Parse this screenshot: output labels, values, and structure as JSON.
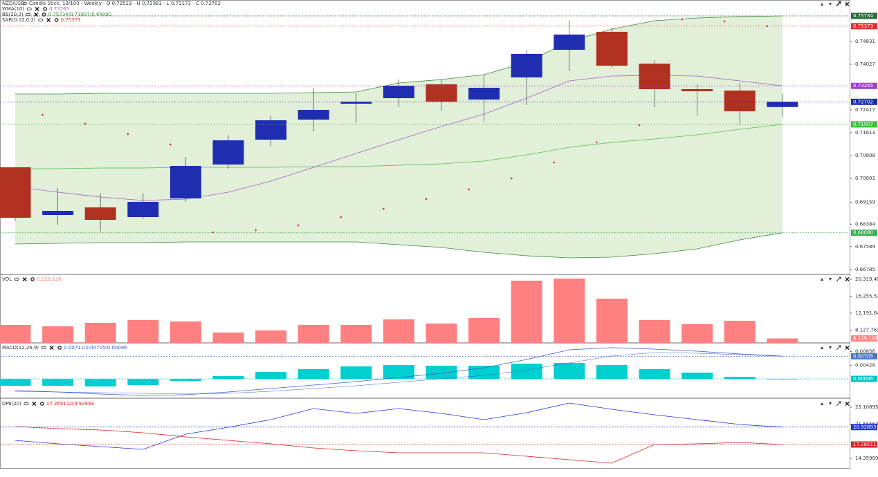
{
  "chart_data": [
    {
      "type": "candlestick",
      "symbol": "NZD/USD",
      "title": "Candle Stick, 19/100 - Weekly - O 0.72519 - H 0.72981 - L 0.72173 - C 0.72702",
      "open": [
        0.70391,
        0.68708,
        0.68976,
        0.68635,
        0.69293,
        0.70489,
        0.71367,
        0.72075,
        0.72636,
        0.72831,
        0.73319,
        0.72783,
        0.73563,
        0.74539,
        0.75174,
        0.74051,
        0.73149,
        0.731,
        0.72519
      ],
      "high": [
        0.7039,
        0.69659,
        0.69464,
        0.69464,
        0.70757,
        0.71538,
        0.72221,
        0.73197,
        0.73027,
        0.7349,
        0.7349,
        0.73685,
        0.74539,
        0.75589,
        0.7532,
        0.74173,
        0.73319,
        0.73368,
        0.72981
      ],
      "low": [
        0.685,
        0.68366,
        0.68122,
        0.68562,
        0.69171,
        0.70343,
        0.71123,
        0.7166,
        0.71953,
        0.72514,
        0.72392,
        0.72002,
        0.72587,
        0.73783,
        0.73905,
        0.72514,
        0.72221,
        0.7188,
        0.72173
      ],
      "close": [
        0.6861,
        0.68854,
        0.68537,
        0.69171,
        0.7044,
        0.71343,
        0.72051,
        0.72417,
        0.72709,
        0.73271,
        0.72709,
        0.73197,
        0.74393,
        0.75076,
        0.73978,
        0.73149,
        0.73075,
        0.72368,
        0.72702
      ],
      "up_color": "#1f2db0",
      "down_color": "#b0311f",
      "wma": {
        "name": "WMA(10)",
        "label": "0.73265",
        "color": "#a060c8",
        "values": [
          0.69708,
          0.69513,
          0.69342,
          0.6922,
          0.69269,
          0.69513,
          0.69903,
          0.70391,
          0.70879,
          0.71367,
          0.71831,
          0.7227,
          0.72831,
          0.73441,
          0.73612,
          0.73637,
          0.73612,
          0.73441,
          0.73265
        ]
      },
      "bb": {
        "name": "BB(20,2)",
        "label": "0.75734/0.71907/0.68080",
        "color": "#3a8a3a",
        "mid_color": "#4cc04c",
        "fill": "#e2efd9",
        "upper": [
          0.72978,
          0.72978,
          0.73002,
          0.73002,
          0.73002,
          0.73002,
          0.73002,
          0.73027,
          0.73051,
          0.73368,
          0.7349,
          0.73661,
          0.741,
          0.74832,
          0.75271,
          0.75564,
          0.75662,
          0.75711,
          0.75734
        ],
        "middle": [
          0.70343,
          0.70343,
          0.70367,
          0.70367,
          0.70391,
          0.70391,
          0.70391,
          0.70416,
          0.70416,
          0.70465,
          0.70514,
          0.70611,
          0.70831,
          0.71099,
          0.7127,
          0.71392,
          0.71538,
          0.71733,
          0.71907
        ],
        "lower": [
          0.67683,
          0.67708,
          0.67732,
          0.67732,
          0.67756,
          0.67756,
          0.67756,
          0.67756,
          0.67756,
          0.67659,
          0.67561,
          0.6739,
          0.67268,
          0.67195,
          0.6722,
          0.67341,
          0.67512,
          0.67829,
          0.6808
        ]
      },
      "sar": {
        "name": "SAR(0.02,0.2)",
        "label": "0.75373",
        "color": "#c0392b",
        "values": [
          null,
          0.72246,
          0.71929,
          0.71563,
          0.71197,
          0.68097,
          0.6817,
          0.68342,
          0.68634,
          0.68927,
          0.6927,
          0.69611,
          0.70001,
          0.70562,
          0.7127,
          0.7188,
          0.75613,
          0.7554,
          0.75373
        ]
      },
      "markers": [
        {
          "value": 0.75734,
          "label": "0.75734",
          "color": "#2f6b3f"
        },
        {
          "value": 0.75373,
          "label": "0.75373",
          "color": "#e0302a"
        },
        {
          "value": 0.73265,
          "label": "0.73265",
          "color": "#a040d0"
        },
        {
          "value": 0.72702,
          "label": "0.72702",
          "color": "#1a2db0"
        },
        {
          "value": 0.71907,
          "label": "0.71907",
          "color": "#3cc03c"
        },
        {
          "value": 0.6808,
          "label": "0.68080",
          "color": "#38b050"
        }
      ],
      "ylim": [
        0.66634,
        0.76296
      ],
      "yticks": [
        0.74831,
        0.74027,
        0.72417,
        0.71613,
        0.70808,
        0.70003,
        0.69159,
        0.68384,
        0.67589,
        0.66785
      ]
    },
    {
      "type": "bar",
      "name": "VOL",
      "color": "#ff8080",
      "values": [
        9370000,
        9040000,
        9870000,
        10530000,
        10200000,
        7550000,
        8040000,
        9370000,
        9370000,
        10700000,
        9700000,
        11030000,
        19990000,
        20490000,
        15670000,
        10530000,
        9540000,
        10370000,
        6129128
      ],
      "value_labels": [
        null,
        null,
        null,
        null,
        null,
        null,
        null,
        null,
        null,
        null,
        null,
        null,
        null,
        null,
        null,
        null,
        null,
        null,
        "6,129,128"
      ],
      "ylim": [
        5060000,
        21310000
      ],
      "yticks": [
        {
          "value": 20319407,
          "label": "20,319,407"
        },
        {
          "value": 16255526,
          "label": "16,255,526"
        },
        {
          "value": 12191644,
          "label": "12,191,644"
        },
        {
          "value": 8127763,
          "label": "8,127,763"
        }
      ]
    },
    {
      "type": "macd",
      "name": "MACD(12,26,9)",
      "label": "0.00711/0.00705/0.00006",
      "color": "#3a5fd0",
      "hist_color": "#00cfcf",
      "macd": [
        -0.00357,
        -0.004,
        -0.00464,
        -0.00507,
        -0.00486,
        -0.004,
        -0.00293,
        -0.00186,
        -0.00079,
        0.00049,
        0.00178,
        0.00349,
        0.00606,
        0.00906,
        0.00971,
        0.00927,
        0.00863,
        0.00777,
        0.00711
      ],
      "signal": [
        -0.00379,
        -0.004,
        -0.00421,
        -0.00443,
        -0.00464,
        -0.00443,
        -0.00379,
        -0.00293,
        -0.00208,
        -0.00101,
        6e-05,
        0.00113,
        0.00285,
        0.00499,
        0.00713,
        0.0082,
        0.00798,
        0.00755,
        0.00705
      ],
      "histogram": [
        -0.00208,
        -0.00208,
        -0.00229,
        -0.00186,
        -0.00058,
        0.00092,
        0.0022,
        0.00306,
        0.00392,
        0.00434,
        0.00413,
        0.00413,
        0.00477,
        0.00499,
        0.00434,
        0.00306,
        0.00199,
        0.00071,
        6e-05
      ],
      "markers": [
        {
          "value": 0.00705,
          "label": "0.00705",
          "color": "#4a78c8"
        },
        {
          "value": 6e-05,
          "label": "0.00006",
          "color": "#00c8c8"
        }
      ],
      "ylim": [
        -0.00571,
        0.01098
      ],
      "yticks": [
        0.00856,
        0.00428
      ]
    },
    {
      "type": "dmi",
      "name": "DMI(20)",
      "label": "17.26511/20.92893",
      "plus_color": "#2233dd",
      "minus_color": "#dd2222",
      "plus_di": [
        18.136,
        17.41,
        16.829,
        16.248,
        19.444,
        20.896,
        22.494,
        24.818,
        23.802,
        24.818,
        23.802,
        22.494,
        23.947,
        25.981,
        24.673,
        23.511,
        22.494,
        21.477,
        20.92893
      ],
      "minus_di": [
        21.042,
        20.606,
        20.315,
        19.734,
        18.863,
        18.136,
        17.41,
        16.539,
        15.958,
        15.522,
        15.522,
        15.522,
        14.796,
        14.07,
        13.343,
        17.265,
        17.41,
        17.7,
        17.26511
      ],
      "markers": [
        {
          "value": 20.92893,
          "label": "20.92893",
          "color": "#2233dd"
        },
        {
          "value": 17.26511,
          "label": "17.26511",
          "color": "#dd2222"
        }
      ],
      "ylim": [
        12.326,
        26.707
      ],
      "yticks": [
        25.10895,
        21.55563,
        14.35989
      ]
    }
  ]
}
